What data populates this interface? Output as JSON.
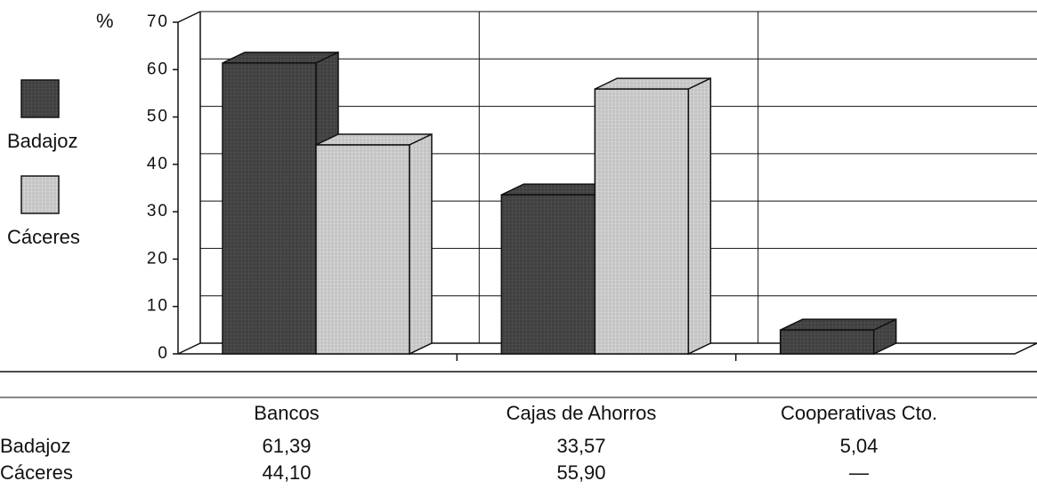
{
  "chart_data": {
    "type": "bar",
    "ylabel": "%",
    "categories": [
      "Bancos",
      "Cajas de Ahorros",
      "Cooperativas Cto."
    ],
    "series": [
      {
        "name": "Badajoz",
        "color": "#555555",
        "values": [
          61.39,
          33.57,
          5.04
        ],
        "value_labels": [
          "61,39",
          "33,57",
          "5,04"
        ]
      },
      {
        "name": "Cáceres",
        "color": "#d8d8d8",
        "values": [
          44.1,
          55.9,
          null
        ],
        "value_labels": [
          "44,10",
          "55,90",
          "—"
        ]
      }
    ],
    "ylim": [
      0,
      70
    ],
    "yticks": [
      0,
      10,
      20,
      30,
      40,
      50,
      60,
      70
    ],
    "grid": true
  }
}
